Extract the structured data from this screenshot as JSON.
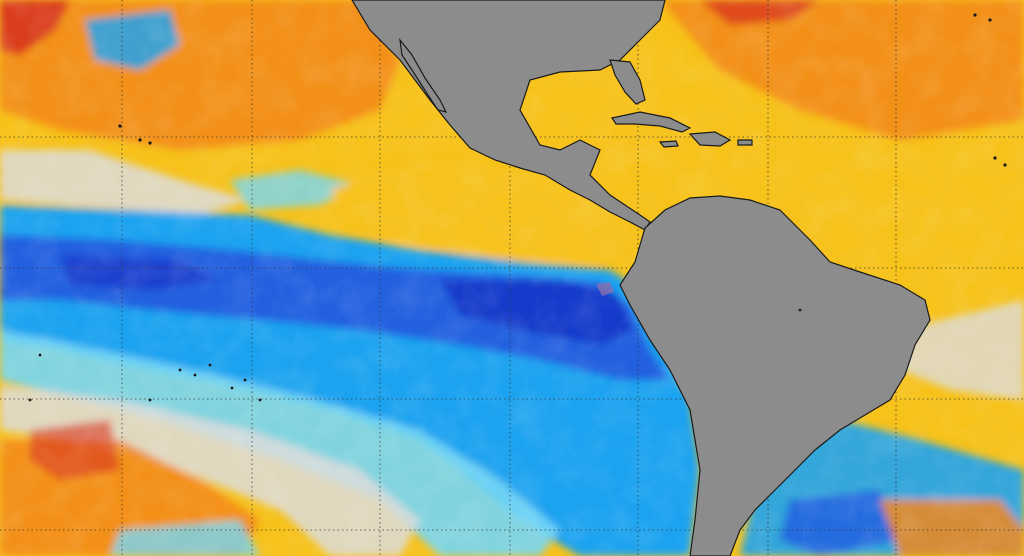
{
  "map": {
    "type": "sea-surface-temperature-anomaly",
    "region_features": [
      "north-america",
      "central-america",
      "caribbean-islands",
      "south-america",
      "pacific-ocean",
      "atlantic-ocean",
      "equatorial-cold-tongue"
    ],
    "colors": {
      "land": "#8c8c8c",
      "coastline": "#1a1a1a",
      "grid": "#3a3a3a",
      "strong_warm": "#d8341c",
      "warm": "#f2871a",
      "mild_warm": "#f7c21a",
      "slight_warm": "#ffe23a",
      "neutral": "#dcdcdc",
      "slight_cool": "#74d6f5",
      "cool": "#1ea3f0",
      "strong_cool": "#2460e0",
      "very_strong_cool": "#1736c9"
    },
    "graticule": {
      "visible": true,
      "style": "dotted"
    }
  }
}
